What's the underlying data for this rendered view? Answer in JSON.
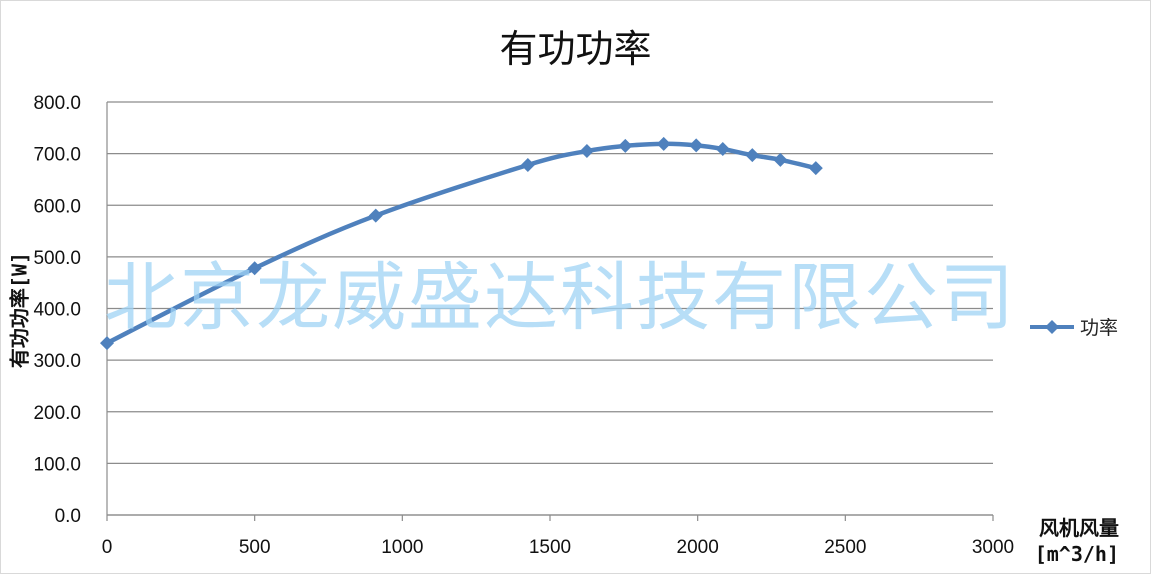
{
  "chart_data": {
    "type": "line",
    "title": "有功功率",
    "ylabel": "有功功率[W]",
    "xlabel_line1": "风机风量",
    "xlabel_line2": "[m^3/h]",
    "xlim": [
      0,
      3000
    ],
    "ylim": [
      0,
      800
    ],
    "x_ticks": [
      0,
      500,
      1000,
      1500,
      2000,
      2500,
      3000
    ],
    "x_tick_labels": [
      "0",
      "500",
      "1000",
      "1500",
      "2000",
      "2500",
      "3000"
    ],
    "y_ticks": [
      0,
      100,
      200,
      300,
      400,
      500,
      600,
      700,
      800
    ],
    "y_tick_labels": [
      "0.0",
      "100.0",
      "200.0",
      "300.0",
      "400.0",
      "500.0",
      "600.0",
      "700.0",
      "800.0"
    ],
    "grid": "horizontal",
    "legend_position": "right",
    "series": [
      {
        "name": "功率",
        "color": "#4f81bd",
        "marker": "diamond",
        "x": [
          0,
          500,
          910,
          1425,
          1625,
          1755,
          1885,
          1995,
          2085,
          2185,
          2280,
          2400
        ],
        "y": [
          333,
          478,
          580,
          678,
          705,
          715,
          719,
          716,
          709,
          697,
          688,
          672
        ]
      }
    ]
  },
  "watermark": "北京龙威盛达科技有限公司",
  "colors": {
    "series": "#4f81bd",
    "grid": "#8c8c8c",
    "watermark": "#9fd3f5"
  }
}
